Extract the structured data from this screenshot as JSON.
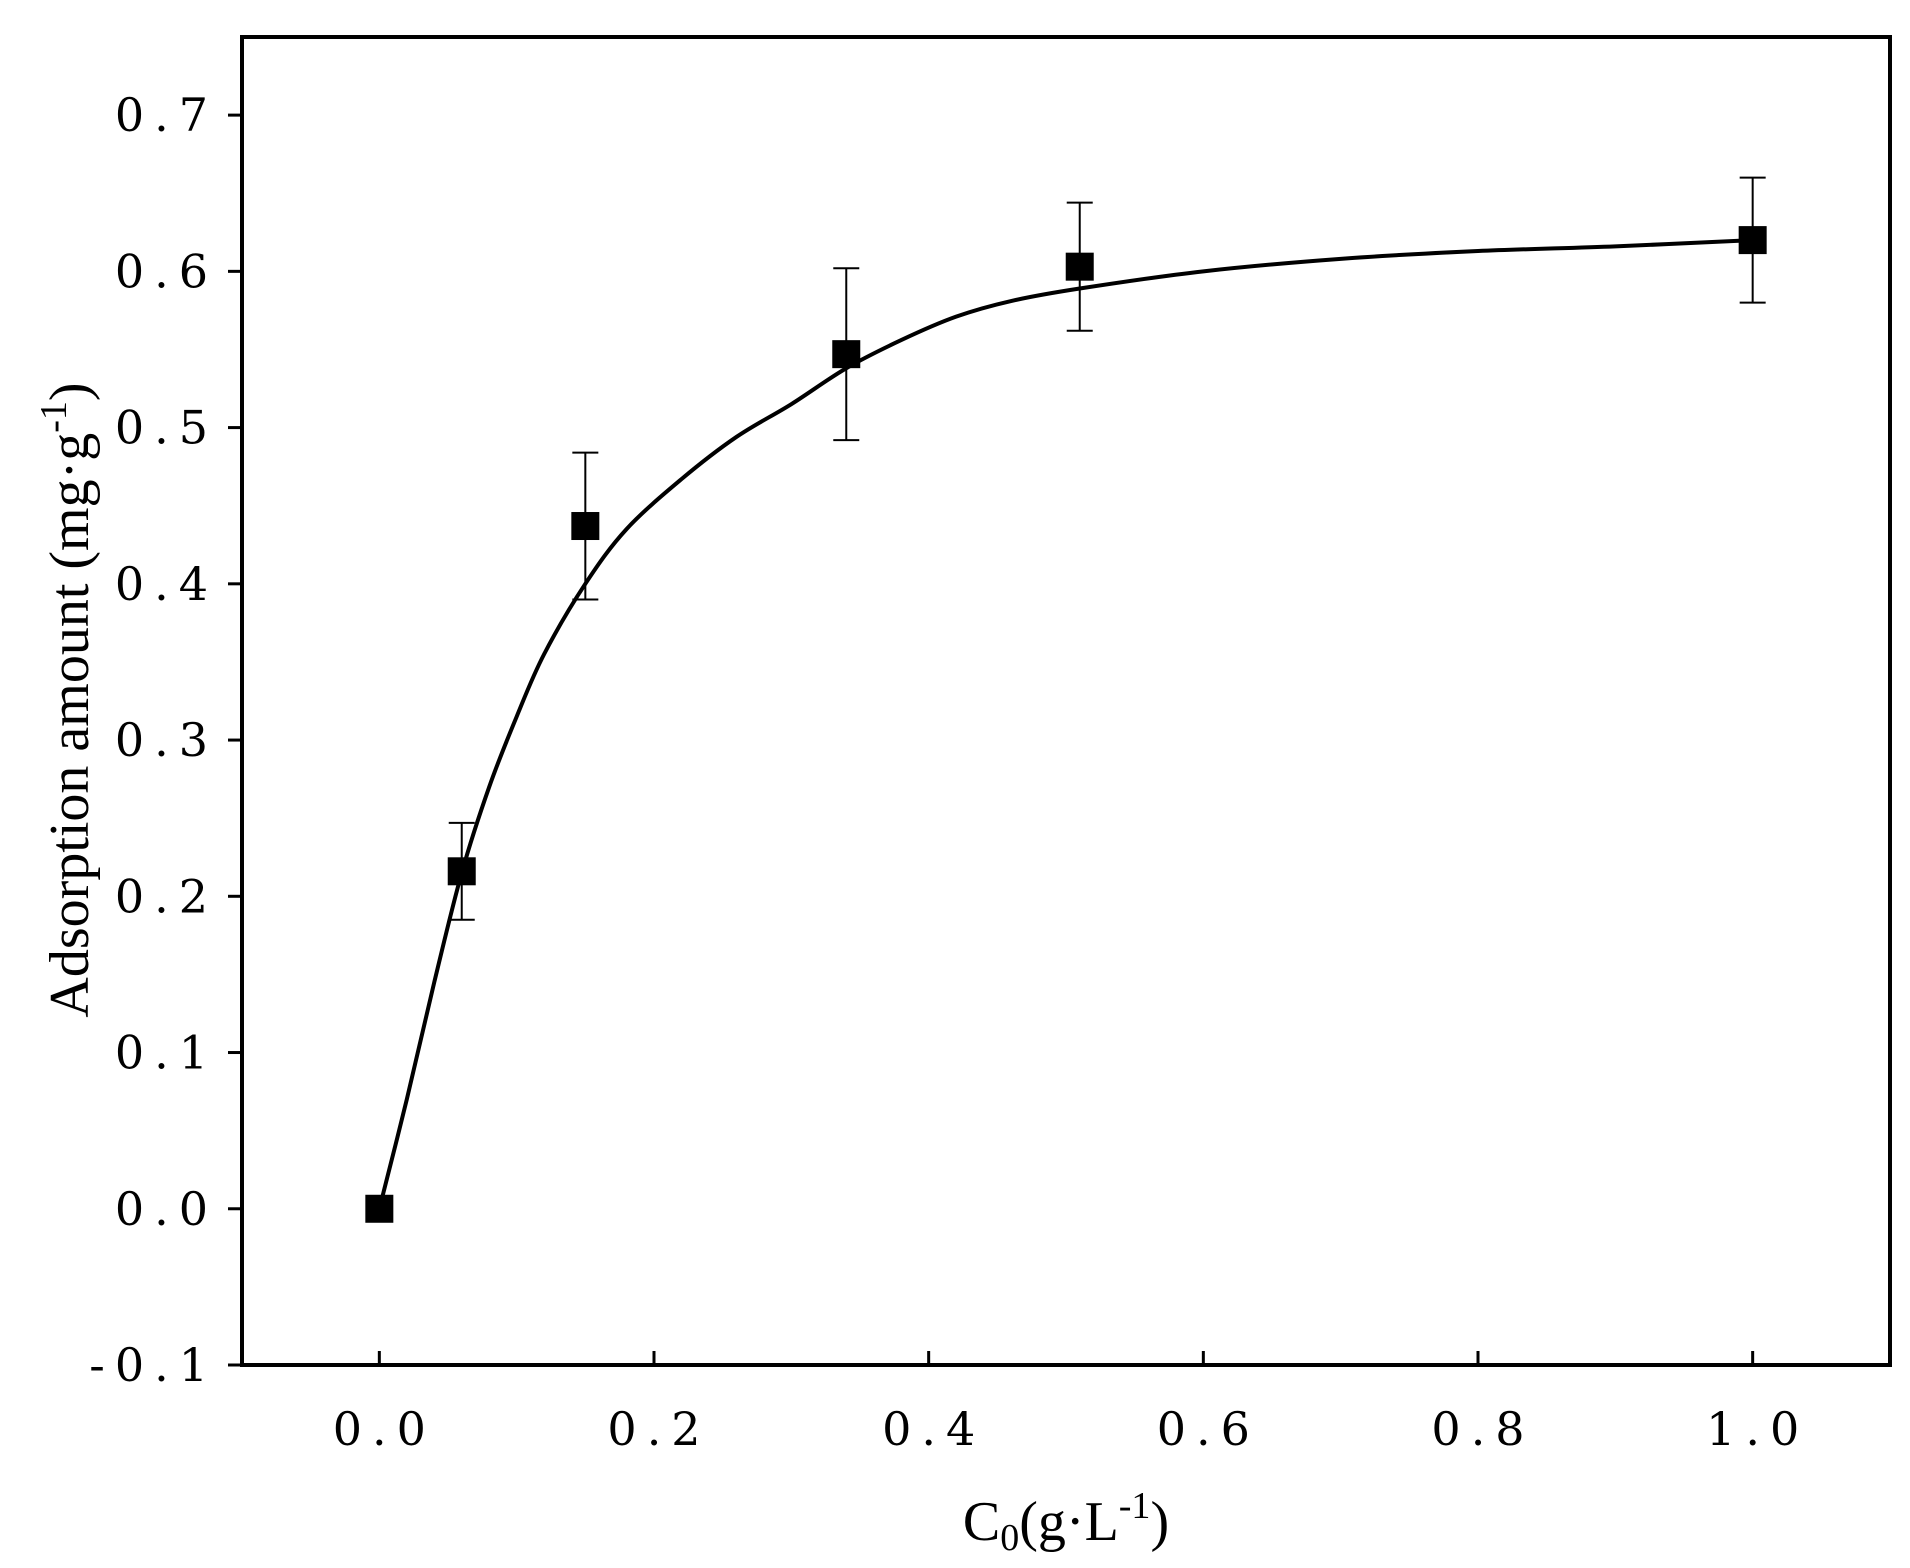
{
  "chart_data": {
    "type": "scatter",
    "xlabel": {
      "main": "C",
      "sub": "0",
      "unit": "(g·L",
      "sup": "-1",
      "close": ")"
    },
    "ylabel": {
      "main": "Adsorption amount (mg·g",
      "sup": "-1",
      "close": ")"
    },
    "xlim": [
      -0.1,
      1.1
    ],
    "ylim": [
      -0.1,
      0.75
    ],
    "x_ticks": [
      "0.0",
      "0.2",
      "0.4",
      "0.6",
      "0.8",
      "1.0"
    ],
    "y_ticks": [
      "-0.1",
      "0.0",
      "0.1",
      "0.2",
      "0.3",
      "0.4",
      "0.5",
      "0.6",
      "0.7"
    ],
    "grid": false,
    "marker": "filled-square",
    "series": [
      {
        "points": [
          {
            "x": 0.0,
            "y": 0.0,
            "err": 0
          },
          {
            "x": 0.06,
            "y": 0.216,
            "err": 0.031
          },
          {
            "x": 0.15,
            "y": 0.437,
            "err": 0.047
          },
          {
            "x": 0.34,
            "y": 0.547,
            "err": 0.055
          },
          {
            "x": 0.51,
            "y": 0.603,
            "err": 0.041
          },
          {
            "x": 1.0,
            "y": 0.62,
            "err": 0.04
          }
        ]
      }
    ],
    "fit_curve": {
      "type": "smooth-line",
      "points": [
        [
          0.0,
          0.0
        ],
        [
          0.02,
          0.07
        ],
        [
          0.04,
          0.145
        ],
        [
          0.06,
          0.215
        ],
        [
          0.08,
          0.27
        ],
        [
          0.1,
          0.315
        ],
        [
          0.12,
          0.355
        ],
        [
          0.15,
          0.4
        ],
        [
          0.18,
          0.435
        ],
        [
          0.22,
          0.467
        ],
        [
          0.26,
          0.494
        ],
        [
          0.3,
          0.515
        ],
        [
          0.34,
          0.538
        ],
        [
          0.38,
          0.556
        ],
        [
          0.42,
          0.571
        ],
        [
          0.46,
          0.581
        ],
        [
          0.51,
          0.589
        ],
        [
          0.6,
          0.6
        ],
        [
          0.7,
          0.608
        ],
        [
          0.8,
          0.613
        ],
        [
          0.9,
          0.616
        ],
        [
          1.0,
          0.62
        ]
      ]
    },
    "colors": {
      "marker": "#000000",
      "line": "#000000",
      "background": "#ffffff"
    }
  }
}
